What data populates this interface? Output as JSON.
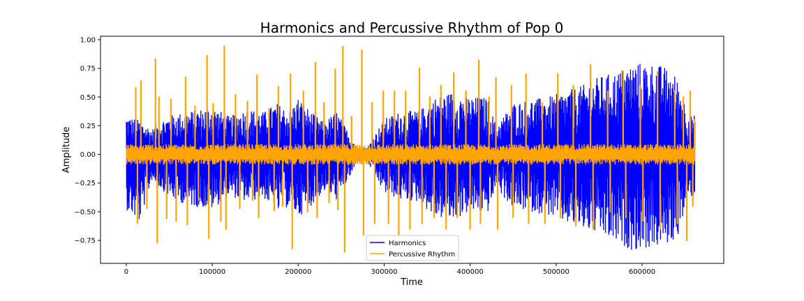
{
  "chart_data": {
    "type": "line",
    "title": "Harmonics and Percussive Rhythm of Pop 0",
    "xlabel": "Time",
    "ylabel": "Amplitude",
    "xlim": [
      -30000,
      695000
    ],
    "ylim": [
      -0.95,
      1.03
    ],
    "x_ticks": [
      0,
      100000,
      200000,
      300000,
      400000,
      500000,
      600000
    ],
    "x_tick_labels": [
      "0",
      "100000",
      "200000",
      "300000",
      "400000",
      "500000",
      "600000"
    ],
    "y_ticks": [
      -0.75,
      -0.5,
      -0.25,
      0.0,
      0.25,
      0.5,
      0.75,
      1.0
    ],
    "y_tick_labels": [
      "−0.75",
      "−0.50",
      "−0.25",
      "0.00",
      "0.25",
      "0.50",
      "0.75",
      "1.00"
    ],
    "grid": false,
    "legend": {
      "position": "lower-center"
    },
    "series": [
      {
        "name": "Harmonics",
        "color": "#0000ff",
        "x_range": [
          0,
          661500
        ],
        "envelope": {
          "x": [
            0,
            15000,
            30000,
            40000,
            55000,
            75000,
            100000,
            120000,
            140000,
            160000,
            175000,
            190000,
            200000,
            215000,
            230000,
            245000,
            260000,
            270000,
            280000,
            300000,
            320000,
            340000,
            360000,
            380000,
            400000,
            420000,
            430000,
            450000,
            470000,
            490000,
            510000,
            530000,
            550000,
            570000,
            590000,
            610000,
            625000,
            640000,
            655000,
            661500
          ],
          "upper": [
            0.34,
            0.3,
            0.22,
            0.3,
            0.35,
            0.38,
            0.42,
            0.33,
            0.4,
            0.37,
            0.45,
            0.38,
            0.5,
            0.37,
            0.28,
            0.38,
            0.17,
            0.06,
            0.06,
            0.31,
            0.38,
            0.38,
            0.5,
            0.55,
            0.5,
            0.5,
            0.25,
            0.45,
            0.48,
            0.5,
            0.55,
            0.6,
            0.68,
            0.72,
            0.8,
            0.8,
            0.77,
            0.68,
            0.34,
            0.34
          ],
          "lower": [
            -0.48,
            -0.6,
            -0.22,
            -0.3,
            -0.4,
            -0.45,
            -0.48,
            -0.36,
            -0.42,
            -0.38,
            -0.52,
            -0.45,
            -0.55,
            -0.45,
            -0.32,
            -0.4,
            -0.2,
            -0.06,
            -0.06,
            -0.34,
            -0.4,
            -0.42,
            -0.55,
            -0.58,
            -0.5,
            -0.52,
            -0.3,
            -0.47,
            -0.5,
            -0.53,
            -0.6,
            -0.65,
            -0.7,
            -0.78,
            -0.84,
            -0.82,
            -0.8,
            -0.75,
            -0.37,
            -0.37
          ]
        }
      },
      {
        "name": "Percussive Rhythm",
        "color": "#ffa500",
        "x_range": [
          0,
          661500
        ],
        "baseline": 0.09,
        "peaks": [
          {
            "x": 11000,
            "y": 0.58
          },
          {
            "x": 13000,
            "y": -0.6
          },
          {
            "x": 17000,
            "y": 0.64
          },
          {
            "x": 24000,
            "y": -0.47
          },
          {
            "x": 34000,
            "y": 0.83
          },
          {
            "x": 36000,
            "y": -0.77
          },
          {
            "x": 38000,
            "y": 0.5
          },
          {
            "x": 47000,
            "y": -0.56
          },
          {
            "x": 52000,
            "y": 0.48
          },
          {
            "x": 58000,
            "y": -0.58
          },
          {
            "x": 69000,
            "y": 0.67
          },
          {
            "x": 71000,
            "y": -0.61
          },
          {
            "x": 80000,
            "y": 0.42
          },
          {
            "x": 84000,
            "y": -0.4
          },
          {
            "x": 94000,
            "y": 0.86
          },
          {
            "x": 96000,
            "y": -0.73
          },
          {
            "x": 101000,
            "y": 0.44
          },
          {
            "x": 110000,
            "y": -0.58
          },
          {
            "x": 114000,
            "y": 0.94
          },
          {
            "x": 116000,
            "y": -0.65
          },
          {
            "x": 127000,
            "y": 0.52
          },
          {
            "x": 132000,
            "y": -0.47
          },
          {
            "x": 141000,
            "y": 0.46
          },
          {
            "x": 147000,
            "y": -0.4
          },
          {
            "x": 152000,
            "y": 0.69
          },
          {
            "x": 154000,
            "y": -0.55
          },
          {
            "x": 166000,
            "y": 0.4
          },
          {
            "x": 172000,
            "y": -0.49
          },
          {
            "x": 177000,
            "y": 0.59
          },
          {
            "x": 182000,
            "y": -0.45
          },
          {
            "x": 191000,
            "y": 0.7
          },
          {
            "x": 193000,
            "y": -0.82
          },
          {
            "x": 206000,
            "y": 0.55
          },
          {
            "x": 211000,
            "y": -0.5
          },
          {
            "x": 220000,
            "y": 0.8
          },
          {
            "x": 222000,
            "y": -0.55
          },
          {
            "x": 230000,
            "y": 0.45
          },
          {
            "x": 236000,
            "y": -0.42
          },
          {
            "x": 243000,
            "y": 0.74
          },
          {
            "x": 246000,
            "y": -0.48
          },
          {
            "x": 252000,
            "y": 0.94
          },
          {
            "x": 254000,
            "y": -0.85
          },
          {
            "x": 262000,
            "y": 0.33
          },
          {
            "x": 274000,
            "y": 0.91
          },
          {
            "x": 276000,
            "y": -0.7
          },
          {
            "x": 286000,
            "y": 0.45
          },
          {
            "x": 289000,
            "y": -0.6
          },
          {
            "x": 299000,
            "y": 0.55
          },
          {
            "x": 305000,
            "y": -0.6
          },
          {
            "x": 312000,
            "y": 0.55
          },
          {
            "x": 317000,
            "y": -0.7
          },
          {
            "x": 325000,
            "y": 0.55
          },
          {
            "x": 330000,
            "y": -0.65
          },
          {
            "x": 341000,
            "y": 0.75
          },
          {
            "x": 344000,
            "y": -0.6
          },
          {
            "x": 353000,
            "y": 0.5
          },
          {
            "x": 358000,
            "y": -0.55
          },
          {
            "x": 366000,
            "y": 0.6
          },
          {
            "x": 372000,
            "y": -0.65
          },
          {
            "x": 381000,
            "y": 0.71
          },
          {
            "x": 385000,
            "y": -0.55
          },
          {
            "x": 395000,
            "y": 0.55
          },
          {
            "x": 400000,
            "y": -0.65
          },
          {
            "x": 410000,
            "y": 0.82
          },
          {
            "x": 412000,
            "y": -0.6
          },
          {
            "x": 422000,
            "y": 0.5
          },
          {
            "x": 430000,
            "y": 0.67
          },
          {
            "x": 432000,
            "y": -0.65
          },
          {
            "x": 448000,
            "y": 0.6
          },
          {
            "x": 450000,
            "y": -0.55
          },
          {
            "x": 465000,
            "y": 0.7
          },
          {
            "x": 468000,
            "y": -0.6
          },
          {
            "x": 484000,
            "y": 0.45
          },
          {
            "x": 487000,
            "y": -0.6
          },
          {
            "x": 502000,
            "y": 0.7
          },
          {
            "x": 505000,
            "y": -0.55
          },
          {
            "x": 520000,
            "y": 0.6
          },
          {
            "x": 523000,
            "y": -0.62
          },
          {
            "x": 540000,
            "y": 0.78
          },
          {
            "x": 543000,
            "y": -0.65
          },
          {
            "x": 560000,
            "y": 0.55
          },
          {
            "x": 563000,
            "y": -0.5
          },
          {
            "x": 578000,
            "y": 0.72
          },
          {
            "x": 581000,
            "y": -0.55
          },
          {
            "x": 598000,
            "y": 0.6
          },
          {
            "x": 601000,
            "y": -0.58
          },
          {
            "x": 618000,
            "y": 0.72
          },
          {
            "x": 621000,
            "y": -0.65
          },
          {
            "x": 638000,
            "y": 0.55
          },
          {
            "x": 641000,
            "y": -0.6
          },
          {
            "x": 648000,
            "y": 0.5
          },
          {
            "x": 652000,
            "y": -0.75
          },
          {
            "x": 656000,
            "y": 0.55
          },
          {
            "x": 659000,
            "y": -0.45
          },
          {
            "x": 661000,
            "y": 0.3
          }
        ]
      }
    ]
  }
}
